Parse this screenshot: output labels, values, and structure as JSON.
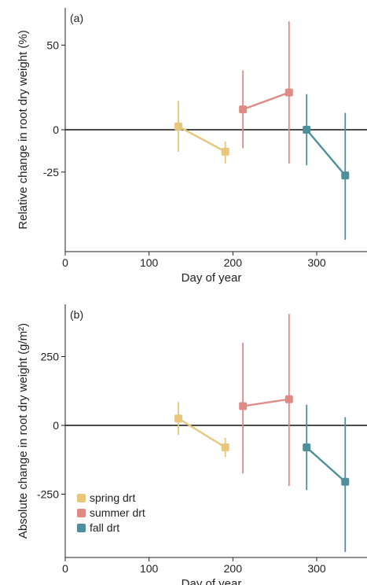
{
  "legend": [
    {
      "label": "spring drt",
      "color": "#e8c77d"
    },
    {
      "label": "summer drt",
      "color": "#e08a86"
    },
    {
      "label": "fall drt",
      "color": "#4e8f9c"
    }
  ],
  "chart_data": [
    {
      "type": "line",
      "panel_label": "(a)",
      "xlabel": "Day of year",
      "ylabel": "Relative change in root dry weight (%)",
      "xlim": [
        0,
        360
      ],
      "ylim": [
        -72,
        72
      ],
      "xticks": [
        0,
        100,
        200,
        300
      ],
      "yticks": [
        50,
        0,
        -25
      ],
      "ytick_labels": [
        "50",
        "0",
        "-25"
      ],
      "zero_line": true,
      "series": [
        {
          "name": "spring drt",
          "color": "#e8c77d",
          "points": [
            {
              "x": 135,
              "y": 2,
              "lo": -13,
              "hi": 17
            },
            {
              "x": 191,
              "y": -13,
              "lo": -20,
              "hi": -7
            }
          ]
        },
        {
          "name": "summer drt",
          "color": "#e08a86",
          "points": [
            {
              "x": 212,
              "y": 12,
              "lo": -11,
              "hi": 35
            },
            {
              "x": 267,
              "y": 22,
              "lo": -20,
              "hi": 64
            }
          ]
        },
        {
          "name": "fall drt",
          "color": "#4e8f9c",
          "points": [
            {
              "x": 288,
              "y": 0,
              "lo": -21,
              "hi": 21
            },
            {
              "x": 334,
              "y": -27,
              "lo": -65,
              "hi": 10
            }
          ]
        }
      ]
    },
    {
      "type": "line",
      "panel_label": "(b)",
      "xlabel": "Day of year",
      "ylabel": "Absolute change in root dry weight (g/m²)",
      "xlim": [
        0,
        360
      ],
      "ylim": [
        -480,
        440
      ],
      "xticks": [
        0,
        100,
        200,
        300
      ],
      "yticks": [
        250,
        0,
        -250
      ],
      "ytick_labels": [
        "250",
        "0",
        "-250"
      ],
      "zero_line": true,
      "series": [
        {
          "name": "spring drt",
          "color": "#e8c77d",
          "points": [
            {
              "x": 135,
              "y": 25,
              "lo": -35,
              "hi": 85
            },
            {
              "x": 191,
              "y": -80,
              "lo": -115,
              "hi": -45
            }
          ]
        },
        {
          "name": "summer drt",
          "color": "#e08a86",
          "points": [
            {
              "x": 212,
              "y": 70,
              "lo": -175,
              "hi": 300
            },
            {
              "x": 267,
              "y": 95,
              "lo": -220,
              "hi": 405
            }
          ]
        },
        {
          "name": "fall drt",
          "color": "#4e8f9c",
          "points": [
            {
              "x": 288,
              "y": -80,
              "lo": -235,
              "hi": 75
            },
            {
              "x": 334,
              "y": -205,
              "lo": -460,
              "hi": 30
            }
          ]
        }
      ]
    }
  ]
}
